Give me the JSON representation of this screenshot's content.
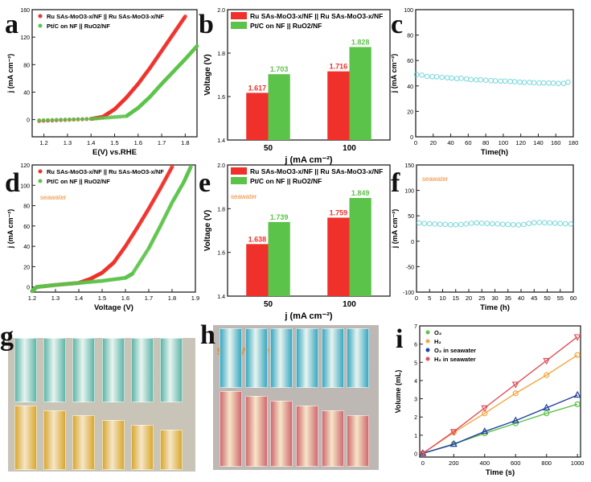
{
  "panel_labels": [
    "a",
    "b",
    "c",
    "d",
    "e",
    "f",
    "g",
    "h",
    "i"
  ],
  "colors": {
    "red": "#f0302a",
    "green": "#5cc34a",
    "cyan": "#5fd0d6",
    "orange": "#f4a640",
    "blue": "#2040a0",
    "pink": "#e0505a",
    "seawater_text": "#f08a30"
  },
  "photos": {
    "g": {
      "top_color": "#5fb6a8",
      "bottom_color": "#d8a830"
    },
    "h": {
      "top_color": "#3aa8c0",
      "bottom_color": "#d06a70",
      "label": "seawater"
    }
  },
  "chart_data": [
    {
      "id": "a",
      "type": "scatter",
      "xlabel": "E(V) vs.RHE",
      "ylabel": "j (mA cm⁻²)",
      "xlim": [
        1.15,
        1.85
      ],
      "ylim": [
        -25,
        160
      ],
      "xticks": [
        1.2,
        1.3,
        1.4,
        1.5,
        1.6,
        1.7,
        1.8
      ],
      "yticks": [
        0,
        40,
        80,
        120,
        160
      ],
      "legend": "top-left",
      "series": [
        {
          "name": "Ru SAs-MoO3-x/NF || Ru SAs-MoO3-x/NF",
          "color": "#f0302a",
          "points": [
            [
              1.18,
              -2
            ],
            [
              1.4,
              1
            ],
            [
              1.45,
              4
            ],
            [
              1.5,
              15
            ],
            [
              1.55,
              32
            ],
            [
              1.6,
              52
            ],
            [
              1.65,
              75
            ],
            [
              1.7,
              100
            ],
            [
              1.75,
              125
            ],
            [
              1.8,
              150
            ]
          ]
        },
        {
          "name": "Pt/C on NF || RuO2/NF",
          "color": "#5cc34a",
          "points": [
            [
              1.18,
              -1
            ],
            [
              1.4,
              1
            ],
            [
              1.55,
              5
            ],
            [
              1.6,
              17
            ],
            [
              1.65,
              33
            ],
            [
              1.7,
              52
            ],
            [
              1.75,
              70
            ],
            [
              1.8,
              88
            ],
            [
              1.85,
              107
            ]
          ]
        }
      ]
    },
    {
      "id": "b",
      "type": "bar",
      "xlabel": "j (mA cm⁻²)",
      "ylabel": "Voltage (V)",
      "ylim": [
        1.4,
        2.0
      ],
      "yticks": [
        "1.4",
        "1.6",
        "1.8",
        "2.0"
      ],
      "categories": [
        "50",
        "100"
      ],
      "legend": "top-left",
      "series": [
        {
          "name": "Ru SAs-MoO3-x/NF || Ru SAs-MoO3-x/NF",
          "color": "#f0302a",
          "values": [
            1.617,
            1.716
          ],
          "labels": [
            "1.617",
            "1.716"
          ]
        },
        {
          "name": "Pt/C on NF || RuO2/NF",
          "color": "#5cc34a",
          "values": [
            1.703,
            1.828
          ],
          "labels": [
            "1.703",
            "1.828"
          ]
        }
      ]
    },
    {
      "id": "c",
      "type": "scatter",
      "xlabel": "Time(h)",
      "ylabel": "j (mA cm⁻²)",
      "xlim": [
        0,
        180
      ],
      "ylim": [
        0,
        100
      ],
      "xticks": [
        0,
        20,
        40,
        60,
        80,
        100,
        120,
        140,
        160,
        180
      ],
      "yticks": [
        0,
        20,
        40,
        60,
        80,
        100
      ],
      "series": [
        {
          "color": "#5fd0d6",
          "points": [
            [
              1,
              49
            ],
            [
              7,
              48.5
            ],
            [
              13,
              47.5
            ],
            [
              19,
              47.3
            ],
            [
              24,
              47.2
            ],
            [
              30,
              46.8
            ],
            [
              36,
              46.5
            ],
            [
              41,
              46.2
            ],
            [
              47,
              45.8
            ],
            [
              52,
              46
            ],
            [
              58,
              45.5
            ],
            [
              63,
              45
            ],
            [
              69,
              44.8
            ],
            [
              74,
              44.8
            ],
            [
              80,
              44.5
            ],
            [
              86,
              44.2
            ],
            [
              91,
              44
            ],
            [
              97,
              43.8
            ],
            [
              102,
              43.8
            ],
            [
              108,
              43.5
            ],
            [
              113,
              43.3
            ],
            [
              119,
              43
            ],
            [
              124,
              42.8
            ],
            [
              130,
              42.8
            ],
            [
              135,
              42.5
            ],
            [
              141,
              42.3
            ],
            [
              146,
              42.4
            ],
            [
              152,
              42.3
            ],
            [
              157,
              42.2
            ],
            [
              163,
              42
            ],
            [
              169,
              42
            ],
            [
              174,
              43
            ]
          ]
        }
      ]
    },
    {
      "id": "d",
      "type": "scatter",
      "xlabel": "Voltage (V)",
      "ylabel": "j (mA cm⁻²)",
      "xlim": [
        1.2,
        1.9
      ],
      "ylim": [
        -5,
        120
      ],
      "annotation": "seawater",
      "xticks": [
        1.2,
        1.3,
        1.4,
        1.5,
        1.6,
        1.7,
        1.8,
        1.9
      ],
      "yticks": [
        0,
        20,
        40,
        60,
        80,
        100,
        120
      ],
      "legend": "top-left",
      "series": [
        {
          "name": "Ru SAs-MoO3-x/NF || Ru SAs-MoO3-x/NF",
          "color": "#f0302a",
          "points": [
            [
              1.2,
              -4
            ],
            [
              1.22,
              0
            ],
            [
              1.3,
              2
            ],
            [
              1.4,
              4
            ],
            [
              1.45,
              8
            ],
            [
              1.5,
              14
            ],
            [
              1.55,
              24
            ],
            [
              1.6,
              40
            ],
            [
              1.65,
              58
            ],
            [
              1.7,
              77
            ],
            [
              1.75,
              97
            ],
            [
              1.8,
              118
            ]
          ]
        },
        {
          "name": "Pt/C on NF || RuO2/NF",
          "color": "#5cc34a",
          "points": [
            [
              1.2,
              -4
            ],
            [
              1.22,
              0
            ],
            [
              1.3,
              2
            ],
            [
              1.4,
              4
            ],
            [
              1.5,
              6
            ],
            [
              1.6,
              9
            ],
            [
              1.63,
              13
            ],
            [
              1.7,
              38
            ],
            [
              1.75,
              60
            ],
            [
              1.8,
              83
            ],
            [
              1.85,
              103
            ],
            [
              1.88,
              118
            ]
          ]
        }
      ]
    },
    {
      "id": "e",
      "type": "bar",
      "xlabel": "j (mA cm⁻²)",
      "ylabel": "Voltage (V)",
      "ylim": [
        1.4,
        2.0
      ],
      "yticks": [
        "1.4",
        "1.6",
        "1.8",
        "2.0"
      ],
      "categories": [
        "50",
        "100"
      ],
      "annotation": "seawater",
      "legend": "top-left",
      "series": [
        {
          "name": "Ru SAs-MoO3-x/NF || Ru SAs-MoO3-x/NF",
          "color": "#f0302a",
          "values": [
            1.638,
            1.759
          ],
          "labels": [
            "1.638",
            "1.759"
          ]
        },
        {
          "name": "Pt/C on NF || RuO2/NF",
          "color": "#5cc34a",
          "values": [
            1.739,
            1.849
          ],
          "labels": [
            "1.739",
            "1.849"
          ]
        }
      ]
    },
    {
      "id": "f",
      "type": "scatter",
      "xlabel": "Time (h)",
      "ylabel": "j (mA cm⁻²)",
      "xlim": [
        0,
        60
      ],
      "ylim": [
        -100,
        150
      ],
      "annotation": "seawater",
      "xticks": [
        0,
        5,
        10,
        15,
        20,
        25,
        30,
        35,
        40,
        45,
        50,
        55,
        60
      ],
      "yticks": [
        -100,
        -50,
        0,
        50,
        100,
        150
      ],
      "series": [
        {
          "color": "#5fd0d6",
          "points": [
            [
              1,
              36
            ],
            [
              3,
              35
            ],
            [
              5,
              34.5
            ],
            [
              7,
              34
            ],
            [
              9,
              33.5
            ],
            [
              11,
              33
            ],
            [
              13,
              32.5
            ],
            [
              15,
              32.5
            ],
            [
              17,
              33
            ],
            [
              19,
              34
            ],
            [
              21,
              35.5
            ],
            [
              23,
              36
            ],
            [
              25,
              35.5
            ],
            [
              27,
              35
            ],
            [
              29,
              34.5
            ],
            [
              31,
              34
            ],
            [
              33,
              33.5
            ],
            [
              35,
              33
            ],
            [
              37,
              32.5
            ],
            [
              39,
              32
            ],
            [
              41,
              33
            ],
            [
              43,
              35
            ],
            [
              45,
              36.5
            ],
            [
              47,
              37
            ],
            [
              49,
              36.5
            ],
            [
              51,
              36
            ],
            [
              53,
              35.5
            ],
            [
              55,
              35
            ],
            [
              57,
              34.5
            ],
            [
              59,
              34
            ]
          ]
        }
      ]
    },
    {
      "id": "i",
      "type": "line",
      "xlabel": "Time (s)",
      "ylabel": "Volume (mL)",
      "xlim": [
        -20,
        1020
      ],
      "ylim": [
        -0.2,
        7
      ],
      "xticks": [
        0,
        200,
        400,
        600,
        800,
        1000
      ],
      "yticks": [
        0,
        1,
        2,
        3,
        4,
        5,
        6,
        7
      ],
      "legend": "top-left",
      "series": [
        {
          "name": "O₂",
          "color": "#5cc34a",
          "marker": "circle",
          "points": [
            [
              0,
              0
            ],
            [
              200,
              0.52
            ],
            [
              400,
              1.1
            ],
            [
              600,
              1.65
            ],
            [
              800,
              2.2
            ],
            [
              1000,
              2.7
            ]
          ]
        },
        {
          "name": "H₂",
          "color": "#f4a640",
          "marker": "circle",
          "points": [
            [
              0,
              0
            ],
            [
              200,
              1.15
            ],
            [
              400,
              2.2
            ],
            [
              600,
              3.3
            ],
            [
              800,
              4.3
            ],
            [
              1000,
              5.4
            ]
          ]
        },
        {
          "name": "O₂ in seawater",
          "color": "#2040a0",
          "marker": "triangle",
          "points": [
            [
              0,
              0
            ],
            [
              200,
              0.5
            ],
            [
              400,
              1.2
            ],
            [
              600,
              1.8
            ],
            [
              800,
              2.5
            ],
            [
              1000,
              3.2
            ]
          ]
        },
        {
          "name": "H₂ in seawater",
          "color": "#e0505a",
          "marker": "triangle-down",
          "points": [
            [
              0,
              0
            ],
            [
              200,
              1.2
            ],
            [
              400,
              2.5
            ],
            [
              600,
              3.8
            ],
            [
              800,
              5.1
            ],
            [
              1000,
              6.4
            ]
          ]
        }
      ]
    }
  ]
}
